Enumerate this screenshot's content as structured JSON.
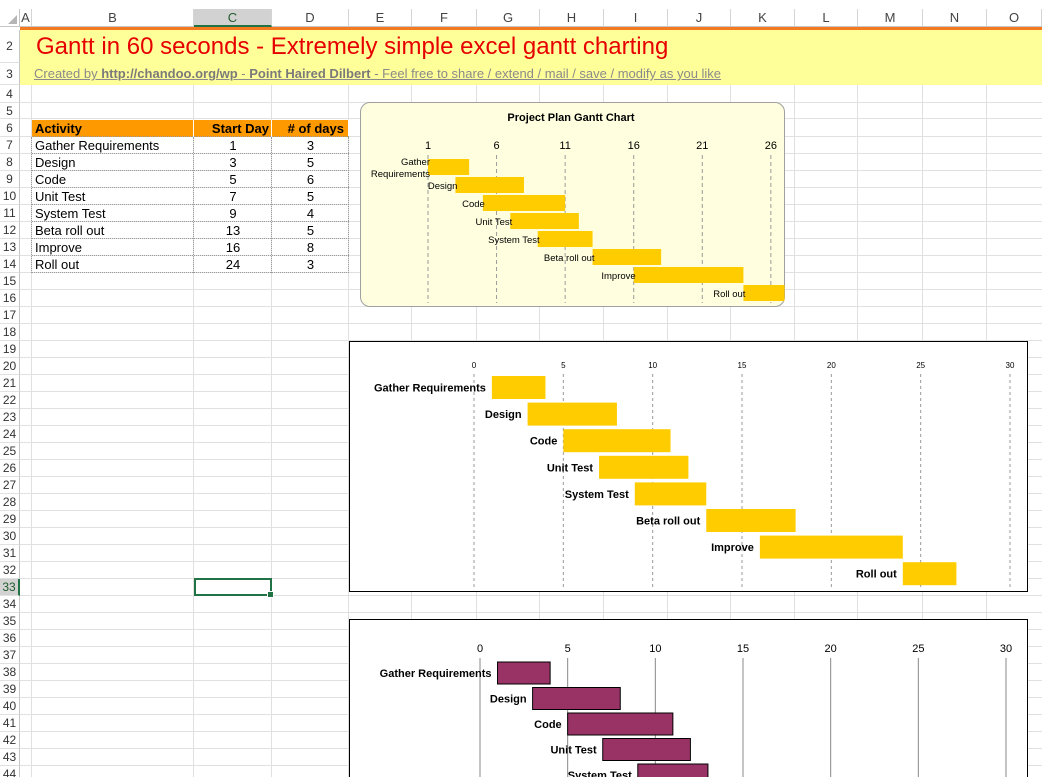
{
  "spreadsheet": {
    "columns": [
      "A",
      "B",
      "C",
      "D",
      "E",
      "F",
      "G",
      "H",
      "I",
      "J",
      "K",
      "L",
      "M",
      "N",
      "O"
    ],
    "selected_column": "C",
    "rows": [
      "2",
      "3",
      "4",
      "5",
      "6",
      "7",
      "8",
      "9",
      "10",
      "11",
      "12",
      "13",
      "14",
      "15",
      "16",
      "17",
      "18",
      "19",
      "20",
      "21",
      "22",
      "23",
      "24",
      "25",
      "26",
      "27",
      "28",
      "29",
      "30",
      "31",
      "32",
      "33",
      "34",
      "35",
      "36",
      "37",
      "38",
      "39",
      "40",
      "41",
      "42",
      "43",
      "44"
    ],
    "selected_row": "33"
  },
  "header": {
    "title": "Gantt in 60 seconds - Extremely simple excel gantt charting",
    "subtitle_prefix": "Created by ",
    "subtitle_link": "http://chandoo.org/wp",
    "subtitle_sep": " - ",
    "subtitle_author": "Point Haired Dilbert",
    "subtitle_suffix": " - Feel free to share / extend / mail / save / modify as you like"
  },
  "table": {
    "headers": [
      "Activity",
      "Start Day",
      "# of days"
    ],
    "rows": [
      [
        "Gather Requirements",
        "1",
        "3"
      ],
      [
        "Design",
        "3",
        "5"
      ],
      [
        "Code",
        "5",
        "6"
      ],
      [
        "Unit Test",
        "7",
        "5"
      ],
      [
        "System Test",
        "9",
        "4"
      ],
      [
        "Beta roll out",
        "13",
        "5"
      ],
      [
        "Improve",
        "16",
        "8"
      ],
      [
        "Roll out",
        "24",
        "3"
      ]
    ]
  },
  "colors": {
    "accent_orange": "#ff9900",
    "bar_yellow": "#ffcc00",
    "bar_maroon": "#993366",
    "title_red": "#e60000"
  },
  "chart_data": [
    {
      "type": "bar",
      "orientation": "horizontal-gantt",
      "title": "Project Plan Gantt Chart",
      "categories": [
        "Gather\nRequirements",
        "Design",
        "Code",
        "Unit Test",
        "System Test",
        "Beta roll out",
        "Improve",
        "Roll out"
      ],
      "series": [
        {
          "start": [
            1,
            3,
            5,
            7,
            9,
            13,
            16,
            24
          ],
          "duration": [
            3,
            5,
            6,
            5,
            4,
            5,
            8,
            3
          ]
        }
      ],
      "xticks": [
        1,
        6,
        11,
        16,
        21,
        26
      ],
      "xlim": [
        1,
        29
      ],
      "x_axis_position": "top",
      "grid": "vertical-dashed",
      "bar_color": "#ffcc00",
      "background": "#ffffe0"
    },
    {
      "type": "bar",
      "orientation": "horizontal-gantt",
      "title": "",
      "categories": [
        "Gather Requirements",
        "Design",
        "Code",
        "Unit Test",
        "System Test",
        "Beta roll out",
        "Improve",
        "Roll out"
      ],
      "series": [
        {
          "start": [
            1,
            3,
            5,
            7,
            9,
            13,
            16,
            24
          ],
          "duration": [
            3,
            5,
            6,
            5,
            4,
            5,
            8,
            3
          ]
        }
      ],
      "xticks": [
        0,
        5,
        10,
        15,
        20,
        25,
        30
      ],
      "xlim": [
        0,
        30
      ],
      "x_axis_position": "top",
      "grid": "vertical-dashed",
      "bar_color": "#ffcc00"
    },
    {
      "type": "bar",
      "orientation": "horizontal-gantt",
      "title": "",
      "categories": [
        "Gather Requirements",
        "Design",
        "Code",
        "Unit Test",
        "System Test"
      ],
      "series": [
        {
          "start": [
            1,
            3,
            5,
            7,
            9
          ],
          "duration": [
            3,
            5,
            6,
            5,
            4
          ]
        }
      ],
      "xticks": [
        0,
        5,
        10,
        15,
        20,
        25,
        30
      ],
      "xlim": [
        0,
        30
      ],
      "x_axis_position": "top",
      "grid": "vertical-solid",
      "bar_color": "#993366"
    }
  ]
}
